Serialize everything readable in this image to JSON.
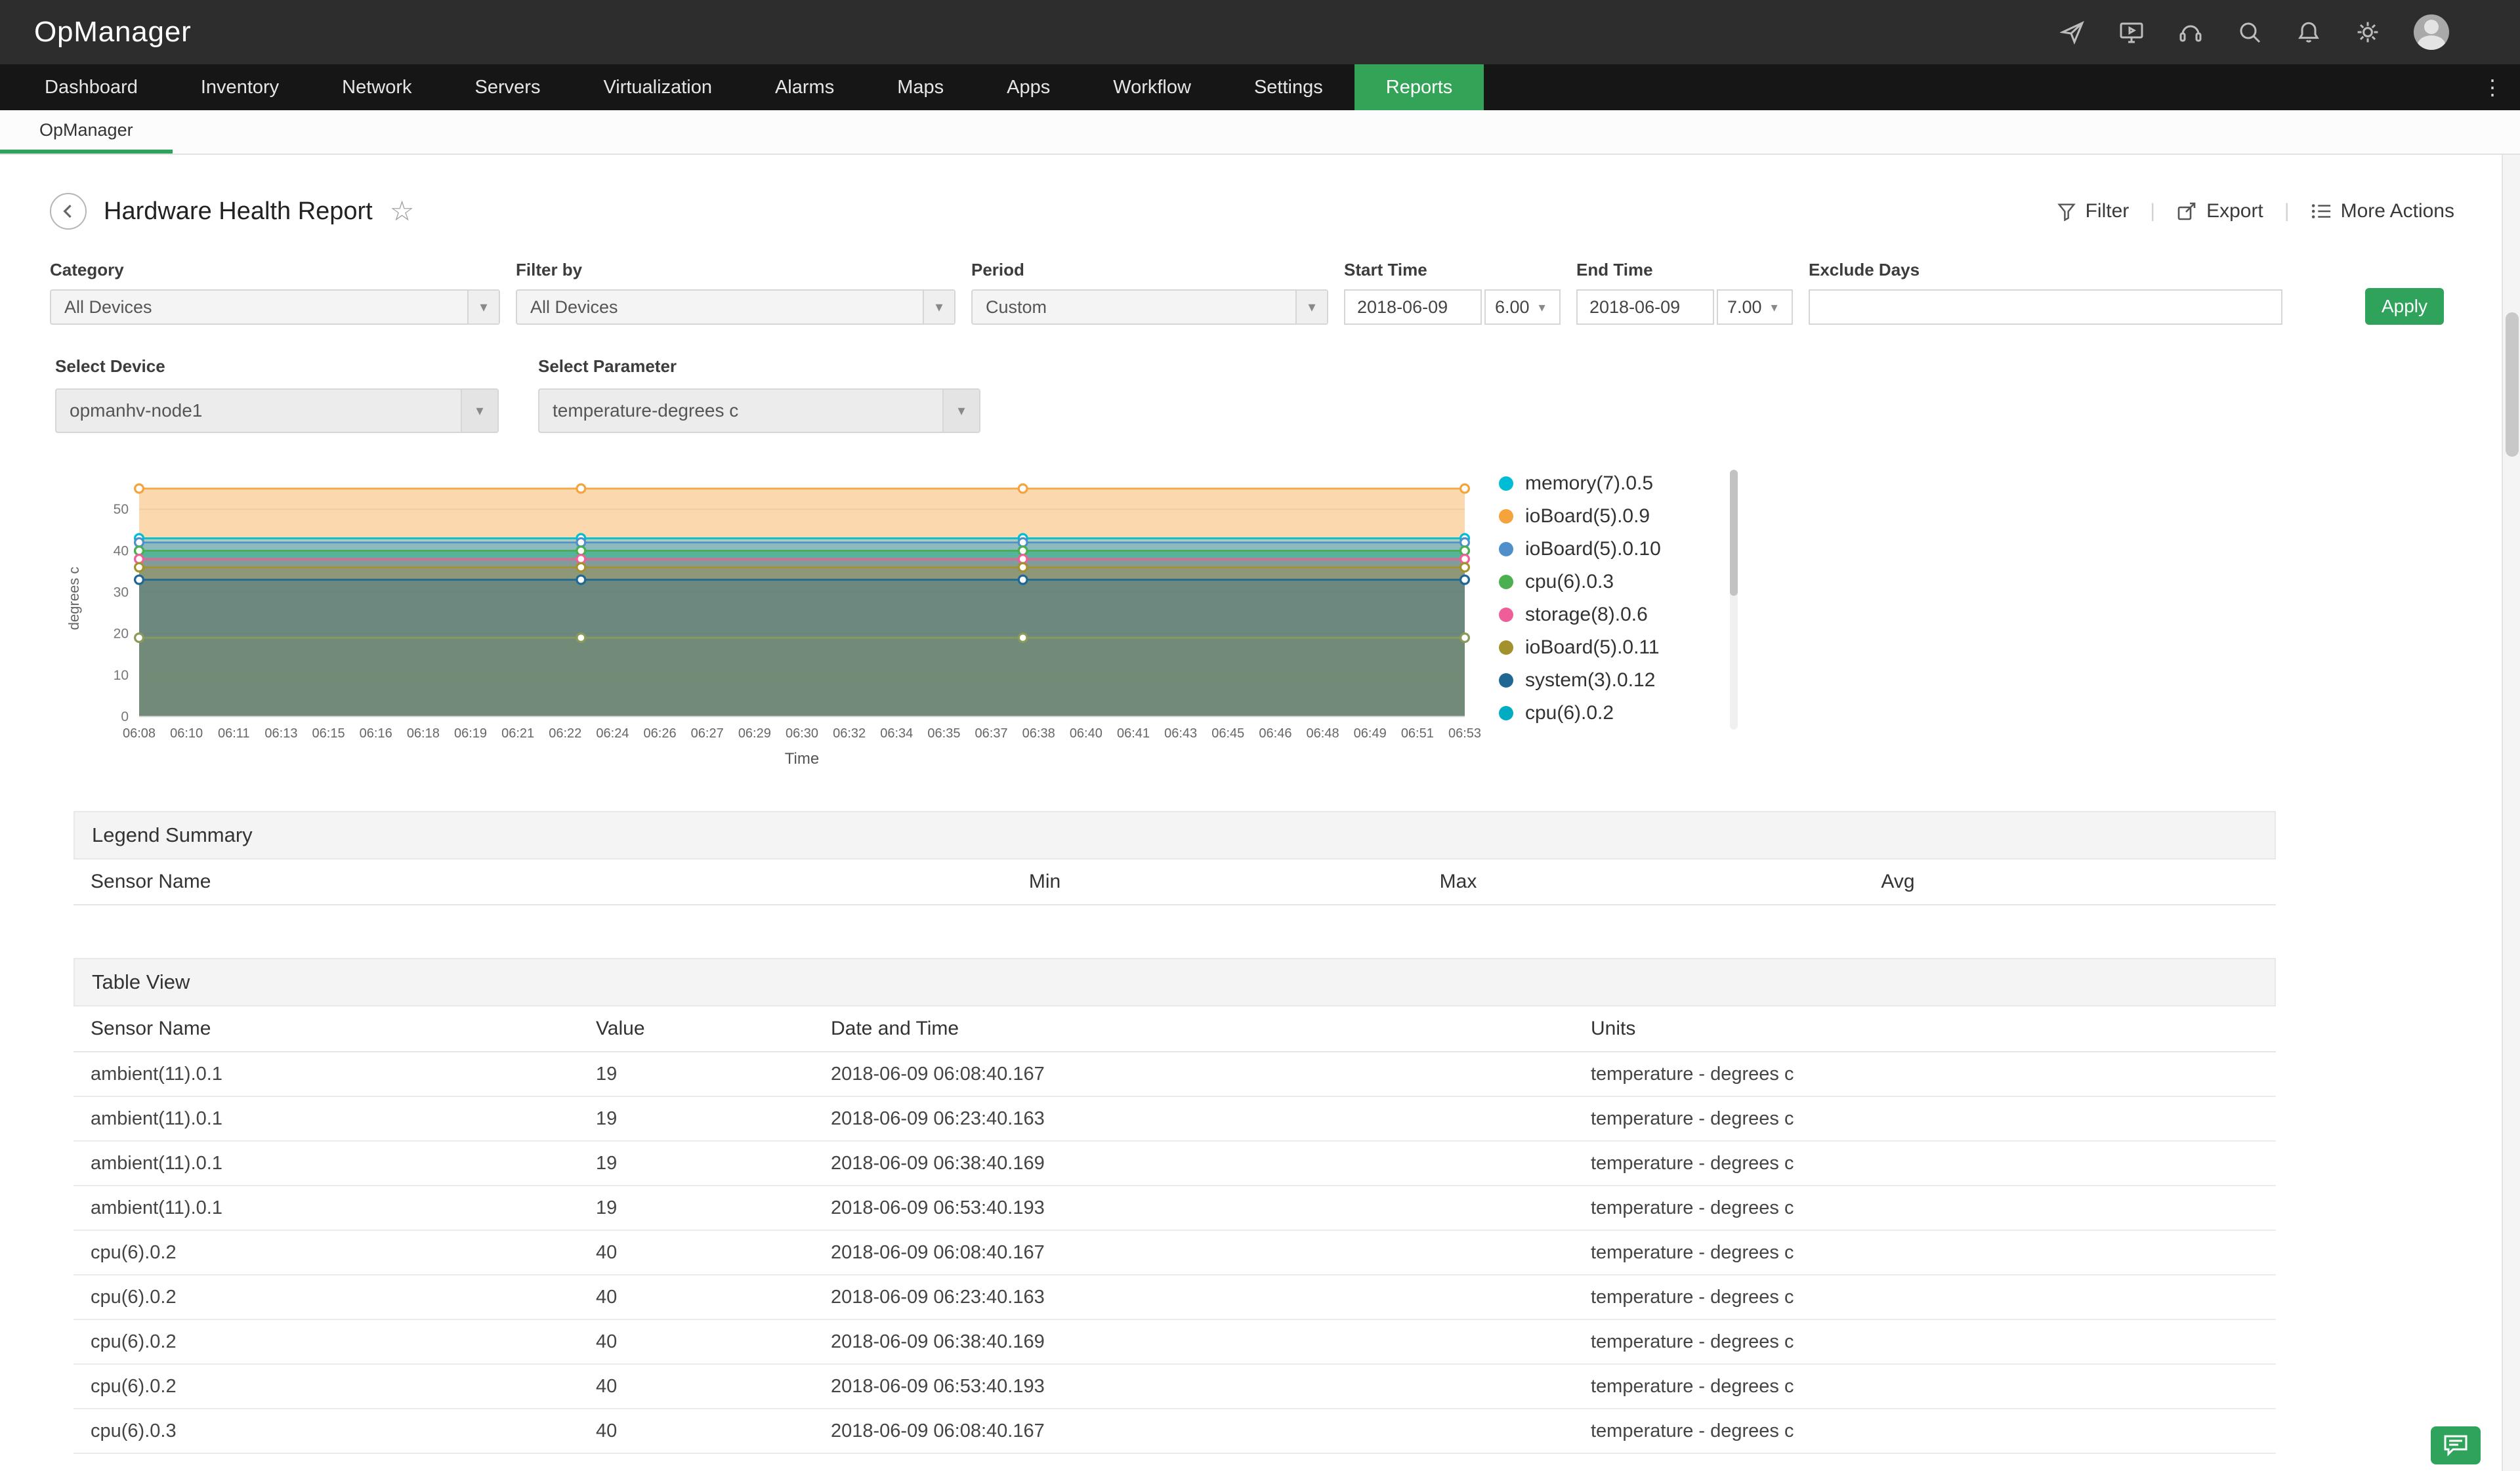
{
  "app": {
    "logo": "OpManager"
  },
  "nav": {
    "items": [
      "Dashboard",
      "Inventory",
      "Network",
      "Servers",
      "Virtualization",
      "Alarms",
      "Maps",
      "Apps",
      "Workflow",
      "Settings",
      "Reports"
    ],
    "active": "Reports"
  },
  "subtabs": [
    "OpManager"
  ],
  "page": {
    "title": "Hardware Health Report",
    "actions": {
      "filter": "Filter",
      "export": "Export",
      "more": "More Actions"
    }
  },
  "filters": {
    "category": {
      "label": "Category",
      "value": "All Devices"
    },
    "filter_by": {
      "label": "Filter by",
      "value": "All Devices"
    },
    "period": {
      "label": "Period",
      "value": "Custom"
    },
    "start_time": {
      "label": "Start Time",
      "date": "2018-06-09",
      "time": "6.00"
    },
    "end_time": {
      "label": "End Time",
      "date": "2018-06-09",
      "time": "7.00"
    },
    "exclude_days": {
      "label": "Exclude Days",
      "value": ""
    },
    "apply_label": "Apply",
    "select_device": {
      "label": "Select Device",
      "value": "opmanhv-node1"
    },
    "select_parameter": {
      "label": "Select Parameter",
      "value": "temperature-degrees c"
    }
  },
  "chart_data": {
    "type": "area",
    "xlabel": "Time",
    "ylabel": "degrees c",
    "ylim": [
      0,
      57
    ],
    "yticks": [
      0,
      10,
      20,
      30,
      40,
      50
    ],
    "grid": true,
    "legend_position": "right",
    "x_labels": [
      "06:08",
      "06:10",
      "06:11",
      "06:13",
      "06:15",
      "06:16",
      "06:18",
      "06:19",
      "06:21",
      "06:22",
      "06:24",
      "06:26",
      "06:27",
      "06:29",
      "06:30",
      "06:32",
      "06:34",
      "06:35",
      "06:37",
      "06:38",
      "06:40",
      "06:41",
      "06:43",
      "06:45",
      "06:46",
      "06:48",
      "06:49",
      "06:51",
      "06:53"
    ],
    "sample_times": [
      "06:08",
      "06:23",
      "06:38",
      "06:53"
    ],
    "series": [
      {
        "name": "ioBoard(5).0.9",
        "color": "#f5a33c",
        "fill_opacity": 0.42,
        "values": [
          55,
          55,
          55,
          55
        ]
      },
      {
        "name": "memory(7).0.5",
        "color": "#00bcd4",
        "fill_opacity": 0.32,
        "values": [
          43,
          43,
          43,
          43
        ]
      },
      {
        "name": "ioBoard(5).0.10",
        "color": "#4f8fca",
        "fill_opacity": 0.32,
        "values": [
          42,
          42,
          42,
          42
        ]
      },
      {
        "name": "cpu(6).0.2",
        "color": "#00acc1",
        "fill_opacity": 0.32,
        "values": [
          40,
          40,
          40,
          40
        ]
      },
      {
        "name": "cpu(6).0.3",
        "color": "#4caf50",
        "fill_opacity": 0.32,
        "values": [
          40,
          40,
          40,
          40
        ]
      },
      {
        "name": "storage(8).0.6",
        "color": "#ee5f9a",
        "fill_opacity": 0.3,
        "values": [
          38,
          38,
          38,
          38
        ]
      },
      {
        "name": "ioBoard(5).0.11",
        "color": "#a3912c",
        "fill_opacity": 0.32,
        "values": [
          36,
          36,
          36,
          36
        ]
      },
      {
        "name": "system(3).0.12",
        "color": "#1f6893",
        "fill_opacity": 0.3,
        "values": [
          33,
          33,
          33,
          33
        ]
      },
      {
        "name": "ambient(11).0.1",
        "color": "#8a9a5b",
        "fill_opacity": 0.18,
        "values": [
          19,
          19,
          19,
          19
        ]
      }
    ],
    "legend_visible": [
      "memory(7).0.5",
      "ioBoard(5).0.9",
      "ioBoard(5).0.10",
      "cpu(6).0.3",
      "storage(8).0.6",
      "ioBoard(5).0.11",
      "system(3).0.12",
      "cpu(6).0.2"
    ]
  },
  "legend_summary": {
    "title": "Legend Summary",
    "columns": [
      "Sensor Name",
      "Min",
      "Max",
      "Avg"
    ],
    "rows": []
  },
  "table_view": {
    "title": "Table View",
    "columns": [
      "Sensor Name",
      "Value",
      "Date and Time",
      "Units"
    ],
    "rows": [
      [
        "ambient(11).0.1",
        "19",
        "2018-06-09 06:08:40.167",
        "temperature - degrees c"
      ],
      [
        "ambient(11).0.1",
        "19",
        "2018-06-09 06:23:40.163",
        "temperature - degrees c"
      ],
      [
        "ambient(11).0.1",
        "19",
        "2018-06-09 06:38:40.169",
        "temperature - degrees c"
      ],
      [
        "ambient(11).0.1",
        "19",
        "2018-06-09 06:53:40.193",
        "temperature - degrees c"
      ],
      [
        "cpu(6).0.2",
        "40",
        "2018-06-09 06:08:40.167",
        "temperature - degrees c"
      ],
      [
        "cpu(6).0.2",
        "40",
        "2018-06-09 06:23:40.163",
        "temperature - degrees c"
      ],
      [
        "cpu(6).0.2",
        "40",
        "2018-06-09 06:38:40.169",
        "temperature - degrees c"
      ],
      [
        "cpu(6).0.2",
        "40",
        "2018-06-09 06:53:40.193",
        "temperature - degrees c"
      ],
      [
        "cpu(6).0.3",
        "40",
        "2018-06-09 06:08:40.167",
        "temperature - degrees c"
      ]
    ]
  },
  "colors": {
    "accent_green": "#2fa35c",
    "nav_active": "#33a457",
    "topbar_bg": "#2d2d2d",
    "nav_bg": "#161616"
  }
}
